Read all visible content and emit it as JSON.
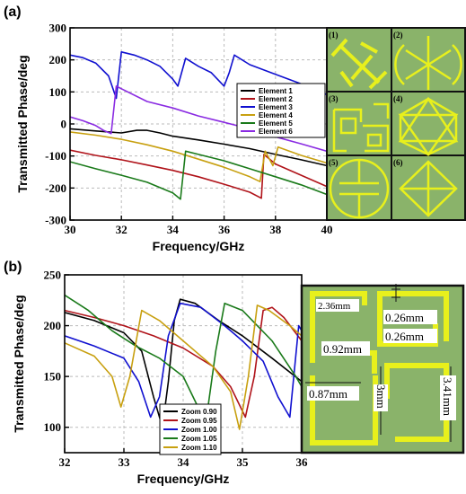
{
  "panel_a": {
    "label": "(a)",
    "inset_labels": [
      "(1)",
      "(2)",
      "(3)",
      "(4)",
      "(5)",
      "(6)"
    ],
    "inset_bg": "#8ab36a",
    "inset_line": "#e8f01c"
  },
  "panel_b": {
    "label": "(b)",
    "dims": [
      "2.36mm",
      "0.26mm",
      "0.26mm",
      "0.92mm",
      "0.87mm",
      "3mm",
      "3.41mm"
    ]
  },
  "chart_data": [
    {
      "type": "line",
      "xlabel": "Frequency/GHz",
      "ylabel": "Transmitted Phase/deg",
      "xlim": [
        30,
        40
      ],
      "ylim": [
        -300,
        300
      ],
      "xticks": [
        30,
        32,
        34,
        36,
        38,
        40
      ],
      "yticks": [
        -300,
        -200,
        -100,
        0,
        100,
        200,
        300
      ],
      "legend": "top-right",
      "series": [
        {
          "name": "Element 1",
          "color": "#000000",
          "x": [
            30,
            31,
            32,
            32.6,
            33,
            33.5,
            34,
            35,
            36,
            37,
            38,
            39,
            40
          ],
          "y": [
            -15,
            -22,
            -28,
            -20,
            -20,
            -28,
            -38,
            -50,
            -63,
            -77,
            -95,
            -112,
            -130
          ]
        },
        {
          "name": "Element 2",
          "color": "#b0131a",
          "x": [
            30,
            31,
            32,
            33,
            34,
            35,
            36,
            37,
            37.45,
            37.55,
            38,
            39,
            40
          ],
          "y": [
            -82,
            -98,
            -112,
            -128,
            -145,
            -165,
            -188,
            -213,
            -232,
            -95,
            -125,
            -160,
            -195
          ]
        },
        {
          "name": "Element 3",
          "color": "#1010d0",
          "x": [
            30,
            30.5,
            31,
            31.5,
            31.8,
            32,
            32.5,
            33,
            33.5,
            34,
            34.2,
            34.5,
            35,
            35.5,
            36,
            36.2,
            36.4,
            37,
            38,
            39,
            40
          ],
          "y": [
            215,
            207,
            190,
            150,
            80,
            225,
            215,
            200,
            180,
            140,
            118,
            205,
            180,
            160,
            118,
            160,
            215,
            185,
            155,
            125,
            92
          ]
        },
        {
          "name": "Element 4",
          "color": "#c8a010",
          "x": [
            30,
            31,
            32,
            33,
            34,
            35,
            36,
            37,
            37.4,
            37.6,
            37.9,
            38.1,
            39,
            40
          ],
          "y": [
            -25,
            -35,
            -48,
            -65,
            -85,
            -110,
            -135,
            -165,
            -180,
            -85,
            -130,
            -72,
            -98,
            -122
          ]
        },
        {
          "name": "Element 5",
          "color": "#1a7a1a",
          "x": [
            30,
            31,
            32,
            33,
            34,
            34.3,
            34.5,
            35,
            36,
            37,
            38,
            39,
            40
          ],
          "y": [
            -118,
            -140,
            -160,
            -182,
            -215,
            -235,
            -85,
            -95,
            -115,
            -140,
            -165,
            -190,
            -220
          ]
        },
        {
          "name": "Element 6",
          "color": "#8a2be2",
          "x": [
            30,
            30.5,
            31,
            31.3,
            31.6,
            31.8,
            32,
            33,
            34,
            35,
            36,
            37,
            38,
            39,
            40
          ],
          "y": [
            22,
            10,
            -5,
            -20,
            -30,
            118,
            110,
            70,
            50,
            25,
            5,
            -15,
            -40,
            -62,
            -85
          ]
        }
      ]
    },
    {
      "type": "line",
      "xlabel": "Frequency/GHz",
      "ylabel": "Transmitted Phase/deg",
      "xlim": [
        32,
        36
      ],
      "ylim": [
        75,
        250
      ],
      "xticks": [
        32,
        33,
        34,
        35,
        36
      ],
      "yticks": [
        100,
        150,
        200,
        250
      ],
      "legend": "bottom-center",
      "series": [
        {
          "name": "Zoom 0.90",
          "color": "#000000",
          "x": [
            32,
            32.5,
            33,
            33.3,
            33.5,
            33.65,
            33.75,
            33.85,
            33.95,
            34.2,
            34.6,
            35,
            35.5,
            36
          ],
          "y": [
            213,
            205,
            193,
            175,
            130,
            100,
            145,
            205,
            226,
            222,
            205,
            190,
            168,
            145
          ]
        },
        {
          "name": "Zoom 0.95",
          "color": "#b0131a",
          "x": [
            32,
            32.5,
            33,
            33.5,
            34,
            34.5,
            34.8,
            35.05,
            35.2,
            35.35,
            35.5,
            35.7,
            36
          ],
          "y": [
            215,
            208,
            200,
            190,
            178,
            160,
            140,
            110,
            150,
            215,
            218,
            208,
            185
          ]
        },
        {
          "name": "Zoom 1.00",
          "color": "#1010d0",
          "x": [
            32,
            32.5,
            33,
            33.25,
            33.45,
            33.6,
            33.75,
            33.95,
            34.3,
            34.7,
            35,
            35.35,
            35.6,
            35.8,
            35.95,
            36
          ],
          "y": [
            190,
            180,
            168,
            145,
            110,
            130,
            190,
            222,
            218,
            200,
            185,
            165,
            130,
            110,
            200,
            195
          ]
        },
        {
          "name": "Zoom 1.05",
          "color": "#1a7a1a",
          "x": [
            32,
            32.4,
            32.8,
            33.2,
            33.6,
            34,
            34.25,
            34.4,
            34.55,
            34.7,
            35,
            35.5,
            35.9,
            36
          ],
          "y": [
            230,
            215,
            195,
            180,
            168,
            150,
            120,
            112,
            175,
            222,
            215,
            185,
            150,
            140
          ]
        },
        {
          "name": "Zoom 1.10",
          "color": "#c8a010",
          "x": [
            32,
            32.5,
            32.8,
            32.95,
            33.1,
            33.3,
            33.6,
            34,
            34.5,
            34.8,
            34.95,
            35.1,
            35.25,
            35.45,
            35.8,
            36
          ],
          "y": [
            183,
            170,
            150,
            120,
            150,
            215,
            205,
            185,
            160,
            135,
            98,
            150,
            220,
            215,
            200,
            190
          ]
        }
      ]
    }
  ]
}
